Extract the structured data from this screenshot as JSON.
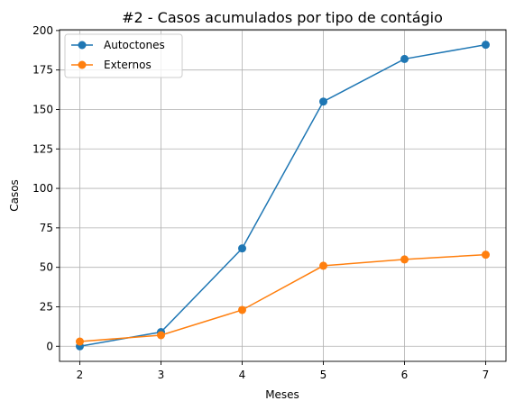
{
  "chart_data": {
    "type": "line",
    "title": "#2 - Casos acumulados por tipo de contágio",
    "xlabel": "Meses",
    "ylabel": "Casos",
    "x": [
      2,
      3,
      4,
      5,
      6,
      7
    ],
    "xticks": [
      "2",
      "3",
      "4",
      "5",
      "6",
      "7"
    ],
    "yticks": [
      "0",
      "25",
      "50",
      "75",
      "100",
      "125",
      "150",
      "175",
      "200"
    ],
    "xlim": [
      1.75,
      7.25
    ],
    "ylim": [
      -9.55,
      200.5
    ],
    "grid": true,
    "legend_position": "top-left",
    "series": [
      {
        "name": "Autoctones",
        "color": "#1f77b4",
        "values": [
          0,
          9,
          62,
          155,
          182,
          191
        ]
      },
      {
        "name": "Externos",
        "color": "#ff7f0e",
        "values": [
          3,
          7,
          23,
          51,
          55,
          58
        ]
      }
    ]
  }
}
